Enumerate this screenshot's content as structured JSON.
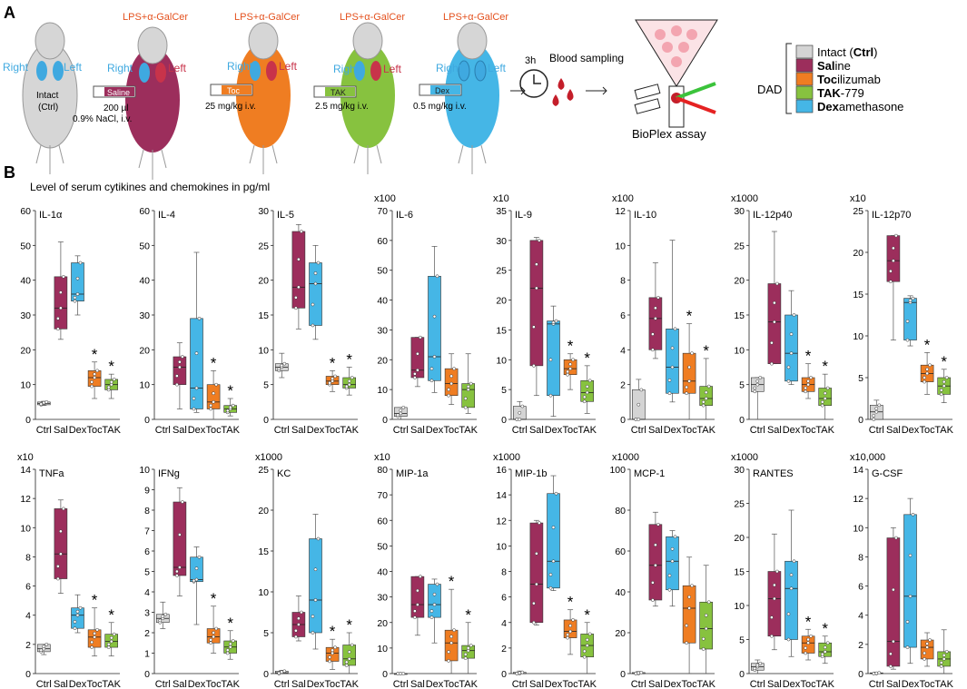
{
  "panel_a": {
    "label": "A",
    "treatment": "LPS+α-GalCer",
    "side_right": "Right",
    "side_left": "Left",
    "intact_label": [
      "Intact",
      "(Ctrl)"
    ],
    "syringe_saline": "Saline",
    "dose_saline": [
      "200 µl",
      "0.9% NaCl, i.v."
    ],
    "syringe_toc": "Toc",
    "dose_toc": "25 mg/kg i.v.",
    "syringe_tak": "TAK",
    "dose_tak": "2.5 mg/kg i.v.",
    "syringe_dex": "Dex",
    "dose_dex": "0.5 mg/kg i.v.",
    "timer": "3h",
    "blood_sampling": "Blood sampling",
    "bioplex": "BioPlex assay",
    "dad": "DAD",
    "legend": [
      {
        "bold": "",
        "pre": "Intact (",
        "b2": "Ctrl",
        "post": ")",
        "color": "#d4d4d4"
      },
      {
        "bold": "Sal",
        "pre": "",
        "b2": "",
        "post": "ine",
        "color": "#9c2e5c"
      },
      {
        "bold": "Toc",
        "pre": "",
        "b2": "",
        "post": "ilizumab",
        "color": "#ef7d22"
      },
      {
        "bold": "TAK",
        "pre": "",
        "b2": "",
        "post": "-779",
        "color": "#87c23f"
      },
      {
        "bold": "Dex",
        "pre": "",
        "b2": "",
        "post": "amethasone",
        "color": "#45b6e6"
      }
    ]
  },
  "panel_b": {
    "label": "B",
    "subtitle": "Level of serum cytikines and chemokines in pg/ml"
  },
  "colors": {
    "Ctrl": "#d4d4d4",
    "Sal": "#9c2e5c",
    "Dex": "#45b6e6",
    "Toc": "#ef7d22",
    "TAK": "#87c23f"
  },
  "chart_data": [
    {
      "type": "box",
      "title": "IL-1α",
      "multiplier": "",
      "ymax": 60,
      "ticks": [
        0,
        10,
        20,
        30,
        40,
        50,
        60
      ],
      "categories": [
        "Ctrl",
        "Sal",
        "Dex",
        "Toc",
        "TAK"
      ],
      "boxes": [
        [
          4,
          4.2,
          4.6,
          5,
          5.2
        ],
        [
          23,
          26,
          32,
          41,
          51
        ],
        [
          30,
          34,
          36,
          45,
          47
        ],
        [
          6,
          9.5,
          12,
          14,
          16.5
        ],
        [
          6,
          8.5,
          10,
          11.5,
          13
        ]
      ],
      "significant": [
        false,
        false,
        false,
        true,
        true
      ]
    },
    {
      "type": "box",
      "title": "IL-4",
      "multiplier": "",
      "ymax": 60,
      "ticks": [
        0,
        10,
        20,
        30,
        40,
        50,
        60
      ],
      "categories": [
        "Ctrl",
        "Sal",
        "Dex",
        "Toc",
        "TAK"
      ],
      "boxes": [
        [
          null,
          null,
          null,
          null,
          null
        ],
        [
          3,
          10,
          15,
          18,
          22
        ],
        [
          2,
          3,
          9,
          29,
          48
        ],
        [
          0,
          3,
          5,
          10,
          14
        ],
        [
          1,
          2,
          3,
          4,
          6
        ]
      ],
      "significant": [
        false,
        false,
        false,
        true,
        true
      ]
    },
    {
      "type": "box",
      "title": "IL-5",
      "multiplier": "",
      "ymax": 30,
      "ticks": [
        0,
        5,
        10,
        15,
        20,
        25,
        30
      ],
      "categories": [
        "Ctrl",
        "Sal",
        "Dex",
        "Toc",
        "TAK"
      ],
      "boxes": [
        [
          6,
          7,
          7.5,
          8,
          9.5
        ],
        [
          13,
          16,
          19,
          27,
          28
        ],
        [
          11.5,
          13.5,
          19.5,
          22.5,
          25
        ],
        [
          4,
          5,
          5.5,
          6.2,
          7
        ],
        [
          3.5,
          4.5,
          5,
          6,
          7.5
        ]
      ],
      "significant": [
        false,
        false,
        false,
        true,
        true
      ]
    },
    {
      "type": "box",
      "title": "IL-6",
      "multiplier": "x100",
      "ymax": 70,
      "ticks": [
        0,
        10,
        20,
        30,
        40,
        50,
        60,
        70
      ],
      "categories": [
        "Ctrl",
        "Sal",
        "Dex",
        "Toc",
        "TAK"
      ],
      "boxes": [
        [
          0,
          1,
          2,
          4,
          4
        ],
        [
          11,
          14,
          16.5,
          27.5,
          27.5
        ],
        [
          9,
          13,
          21,
          48,
          58
        ],
        [
          5,
          8,
          12,
          17,
          22
        ],
        [
          2,
          4,
          10,
          12,
          22
        ]
      ],
      "significant": [
        false,
        false,
        false,
        false,
        false
      ]
    },
    {
      "type": "box",
      "title": "IL-9",
      "multiplier": "x10",
      "ymax": 35,
      "ticks": [
        0,
        5,
        10,
        15,
        20,
        25,
        30,
        35
      ],
      "categories": [
        "Ctrl",
        "Sal",
        "Dex",
        "Toc",
        "TAK"
      ],
      "boxes": [
        [
          0,
          0,
          0,
          2.2,
          3
        ],
        [
          4,
          9,
          22,
          30,
          30.5
        ],
        [
          0.5,
          4,
          16,
          16.5,
          19
        ],
        [
          5,
          7.5,
          8.5,
          10,
          11
        ],
        [
          1,
          3,
          4.5,
          6.5,
          9
        ]
      ],
      "significant": [
        false,
        false,
        false,
        true,
        true
      ]
    },
    {
      "type": "box",
      "title": "IL-10",
      "multiplier": "x100",
      "ymax": 12,
      "ticks": [
        0,
        2,
        4,
        6,
        8,
        10,
        12
      ],
      "categories": [
        "Ctrl",
        "Sal",
        "Dex",
        "Toc",
        "TAK"
      ],
      "boxes": [
        [
          0,
          0,
          0,
          1.7,
          2.3
        ],
        [
          3.5,
          4,
          5.8,
          7,
          9
        ],
        [
          1,
          1.5,
          3,
          5.2,
          10.3
        ],
        [
          0,
          1.5,
          2.2,
          3.8,
          5.5
        ],
        [
          0,
          0.8,
          1.2,
          1.9,
          3.5
        ]
      ],
      "significant": [
        false,
        false,
        false,
        true,
        true
      ]
    },
    {
      "type": "box",
      "title": "IL-12p40",
      "multiplier": "x1000",
      "ymax": 30,
      "ticks": [
        0,
        5,
        10,
        15,
        20,
        25,
        30
      ],
      "categories": [
        "Ctrl",
        "Sal",
        "Dex",
        "Toc",
        "TAK"
      ],
      "boxes": [
        [
          0,
          4,
          5,
          6,
          6
        ],
        [
          8,
          8,
          14,
          19.5,
          27
        ],
        [
          5,
          5.5,
          9.5,
          15,
          18.5
        ],
        [
          3,
          4,
          5,
          6,
          8
        ],
        [
          0,
          2,
          3,
          4.5,
          6.5
        ]
      ],
      "significant": [
        false,
        false,
        false,
        true,
        true
      ]
    },
    {
      "type": "box",
      "title": "IL-12p70",
      "multiplier": "x10",
      "ymax": 25,
      "ticks": [
        0,
        5,
        10,
        15,
        20,
        25
      ],
      "categories": [
        "Ctrl",
        "Sal",
        "Dex",
        "Toc",
        "TAK"
      ],
      "boxes": [
        [
          0,
          0,
          0.9,
          1.7,
          2.3
        ],
        [
          9.5,
          16.5,
          19,
          22,
          22
        ],
        [
          8.8,
          9.5,
          14,
          14.5,
          14.8
        ],
        [
          3,
          4.5,
          5.5,
          6.5,
          8
        ],
        [
          2,
          3,
          4,
          5,
          6
        ]
      ],
      "significant": [
        false,
        false,
        false,
        true,
        true
      ]
    },
    {
      "type": "box",
      "title": "TNFa",
      "multiplier": "x10",
      "ymax": 14,
      "ticks": [
        0,
        2,
        4,
        6,
        8,
        10,
        12,
        14
      ],
      "categories": [
        "Ctrl",
        "Sal",
        "Dex",
        "Toc",
        "TAK"
      ],
      "boxes": [
        [
          1.3,
          1.5,
          1.7,
          2,
          2
        ],
        [
          5.5,
          6.5,
          8.2,
          11.3,
          11.9
        ],
        [
          2.8,
          3.1,
          4,
          4.5,
          5.4
        ],
        [
          1.2,
          1.8,
          2.5,
          3,
          4.5
        ],
        [
          1.2,
          1.8,
          2.2,
          2.7,
          3.5
        ]
      ],
      "significant": [
        false,
        false,
        false,
        true,
        true
      ]
    },
    {
      "type": "box",
      "title": "IFNg",
      "multiplier": "",
      "ymax": 10,
      "ticks": [
        0,
        1,
        2,
        3,
        4,
        5,
        6,
        7,
        8,
        9,
        10
      ],
      "categories": [
        "Ctrl",
        "Sal",
        "Dex",
        "Toc",
        "TAK"
      ],
      "boxes": [
        [
          2.2,
          2.5,
          2.7,
          2.9,
          3.5
        ],
        [
          3.8,
          4.8,
          5.2,
          8.4,
          9.1
        ],
        [
          2.4,
          4.5,
          4.6,
          5.7,
          6.2
        ],
        [
          1,
          1.5,
          1.8,
          2.2,
          3.3
        ],
        [
          0.7,
          1,
          1.3,
          1.6,
          2.1
        ]
      ],
      "significant": [
        false,
        false,
        false,
        true,
        true
      ]
    },
    {
      "type": "box",
      "title": "KC",
      "multiplier": "x1000",
      "ymax": 25,
      "ticks": [
        0,
        5,
        10,
        15,
        20,
        25
      ],
      "categories": [
        "Ctrl",
        "Sal",
        "Dex",
        "Toc",
        "TAK"
      ],
      "boxes": [
        [
          0,
          0,
          0.1,
          0.3,
          0.4
        ],
        [
          4,
          4.5,
          6,
          7.5,
          9.5
        ],
        [
          3,
          5,
          9,
          16.5,
          19.5
        ],
        [
          0.5,
          1.5,
          2.5,
          3.2,
          4.2
        ],
        [
          0,
          1,
          1.8,
          3.5,
          5
        ]
      ],
      "significant": [
        false,
        false,
        false,
        true,
        true
      ]
    },
    {
      "type": "box",
      "title": "MIP-1a",
      "multiplier": "x10",
      "ymax": 80,
      "ticks": [
        0,
        10,
        20,
        30,
        40,
        50,
        60,
        70,
        80
      ],
      "categories": [
        "Ctrl",
        "Sal",
        "Dex",
        "Toc",
        "TAK"
      ],
      "boxes": [
        [
          0,
          0,
          0,
          0,
          0
        ],
        [
          15,
          22,
          27,
          38,
          38
        ],
        [
          12,
          22,
          27,
          35,
          37
        ],
        [
          0,
          5,
          12,
          17,
          33
        ],
        [
          0,
          6,
          9,
          11,
          20
        ]
      ],
      "significant": [
        false,
        false,
        false,
        true,
        true
      ]
    },
    {
      "type": "box",
      "title": "MIP-1b",
      "multiplier": "x1000",
      "ymax": 16,
      "ticks": [
        0,
        2,
        4,
        6,
        8,
        10,
        12,
        14,
        16
      ],
      "categories": [
        "Ctrl",
        "Sal",
        "Dex",
        "Toc",
        "TAK"
      ],
      "boxes": [
        [
          0,
          0,
          0,
          0.1,
          0.2
        ],
        [
          3.8,
          4,
          7,
          11.8,
          12
        ],
        [
          6.5,
          6.7,
          8.8,
          14.1,
          15.5
        ],
        [
          1.5,
          2.8,
          3.3,
          4.2,
          5
        ],
        [
          0,
          1.3,
          2.2,
          3.1,
          4
        ]
      ],
      "significant": [
        false,
        false,
        false,
        true,
        true
      ]
    },
    {
      "type": "box",
      "title": "MCP-1",
      "multiplier": "x1000",
      "ymax": 100,
      "ticks": [
        0,
        20,
        40,
        60,
        80,
        100
      ],
      "categories": [
        "Ctrl",
        "Sal",
        "Dex",
        "Toc",
        "TAK"
      ],
      "boxes": [
        [
          0,
          0,
          0,
          0.5,
          1
        ],
        [
          33,
          36,
          53,
          73,
          79
        ],
        [
          33,
          41,
          55,
          67,
          70
        ],
        [
          0,
          15,
          32,
          43,
          57
        ],
        [
          0,
          12,
          22,
          35,
          53
        ]
      ],
      "significant": [
        false,
        false,
        false,
        false,
        false
      ]
    },
    {
      "type": "box",
      "title": "RANTES",
      "multiplier": "x1000",
      "ymax": 30,
      "ticks": [
        0,
        5,
        10,
        15,
        20,
        25,
        30
      ],
      "categories": [
        "Ctrl",
        "Sal",
        "Dex",
        "Toc",
        "TAK"
      ],
      "boxes": [
        [
          0,
          0.5,
          1,
          1.5,
          2
        ],
        [
          3.5,
          5.5,
          11,
          15,
          20.5
        ],
        [
          2.5,
          5,
          12.5,
          16.5,
          24
        ],
        [
          2,
          3,
          4.5,
          5.5,
          6.5
        ],
        [
          1.5,
          2.5,
          3.2,
          4.5,
          5.5
        ]
      ],
      "significant": [
        false,
        false,
        false,
        true,
        true
      ]
    },
    {
      "type": "box",
      "title": "G-CSF",
      "multiplier": "x10,000",
      "ymax": 14,
      "ticks": [
        0,
        2,
        4,
        6,
        8,
        10,
        12,
        14
      ],
      "categories": [
        "Ctrl",
        "Sal",
        "Dex",
        "Toc",
        "TAK"
      ],
      "boxes": [
        [
          0,
          0,
          0,
          0.05,
          0.1
        ],
        [
          0.3,
          0.5,
          2.2,
          9.3,
          10
        ],
        [
          0.7,
          1.8,
          5.3,
          10.9,
          12
        ],
        [
          0.5,
          1,
          1.8,
          2.3,
          2.8
        ],
        [
          0,
          0.5,
          1,
          1.5,
          3
        ]
      ],
      "significant": [
        false,
        false,
        false,
        false,
        false
      ]
    }
  ]
}
